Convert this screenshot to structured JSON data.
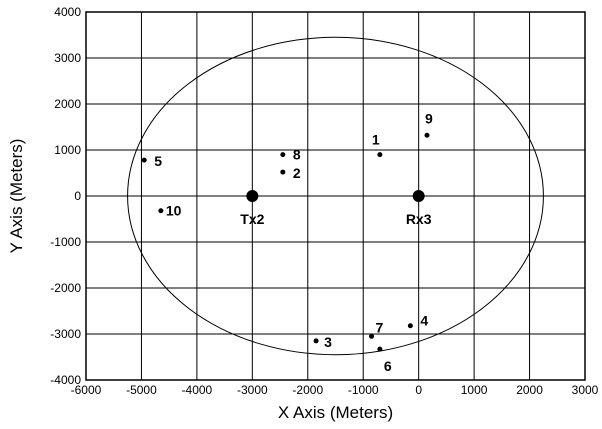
{
  "chart_data": {
    "type": "scatter",
    "xlabel": "X Axis (Meters)",
    "ylabel": "Y Axis (Meters)",
    "xlim": [
      -6000,
      3000
    ],
    "ylim": [
      -4000,
      4000
    ],
    "xticks": [
      -6000,
      -5000,
      -4000,
      -3000,
      -2000,
      -1000,
      0,
      1000,
      2000,
      3000
    ],
    "yticks": [
      -4000,
      -3000,
      -2000,
      -1000,
      0,
      1000,
      2000,
      3000,
      4000
    ],
    "xtick_labels": [
      "-6000",
      "-5000",
      "-4000",
      "-3000",
      "-2000",
      "-1000",
      "0",
      "1000",
      "2000",
      "3000"
    ],
    "ytick_labels": [
      "-4000",
      "-3000",
      "-2000",
      "-1000",
      "0",
      "1000",
      "2000",
      "3000",
      "4000"
    ],
    "grid": true,
    "ellipse": {
      "center": [
        -1500,
        0
      ],
      "rx": 3750,
      "ry": 3450
    },
    "stations": [
      {
        "label": "Tx2",
        "x": -3000,
        "y": 0
      },
      {
        "label": "Rx3",
        "x": 0,
        "y": 0
      }
    ],
    "points": [
      {
        "label": "1",
        "x": -700,
        "y": 900
      },
      {
        "label": "2",
        "x": -2450,
        "y": 520
      },
      {
        "label": "3",
        "x": -1850,
        "y": -3150
      },
      {
        "label": "4",
        "x": -150,
        "y": -2820
      },
      {
        "label": "5",
        "x": -4950,
        "y": 780
      },
      {
        "label": "6",
        "x": -700,
        "y": -3330
      },
      {
        "label": "7",
        "x": -850,
        "y": -3050
      },
      {
        "label": "8",
        "x": -2450,
        "y": 900
      },
      {
        "label": "9",
        "x": 150,
        "y": 1320
      },
      {
        "label": "10",
        "x": -4650,
        "y": -320
      }
    ]
  }
}
